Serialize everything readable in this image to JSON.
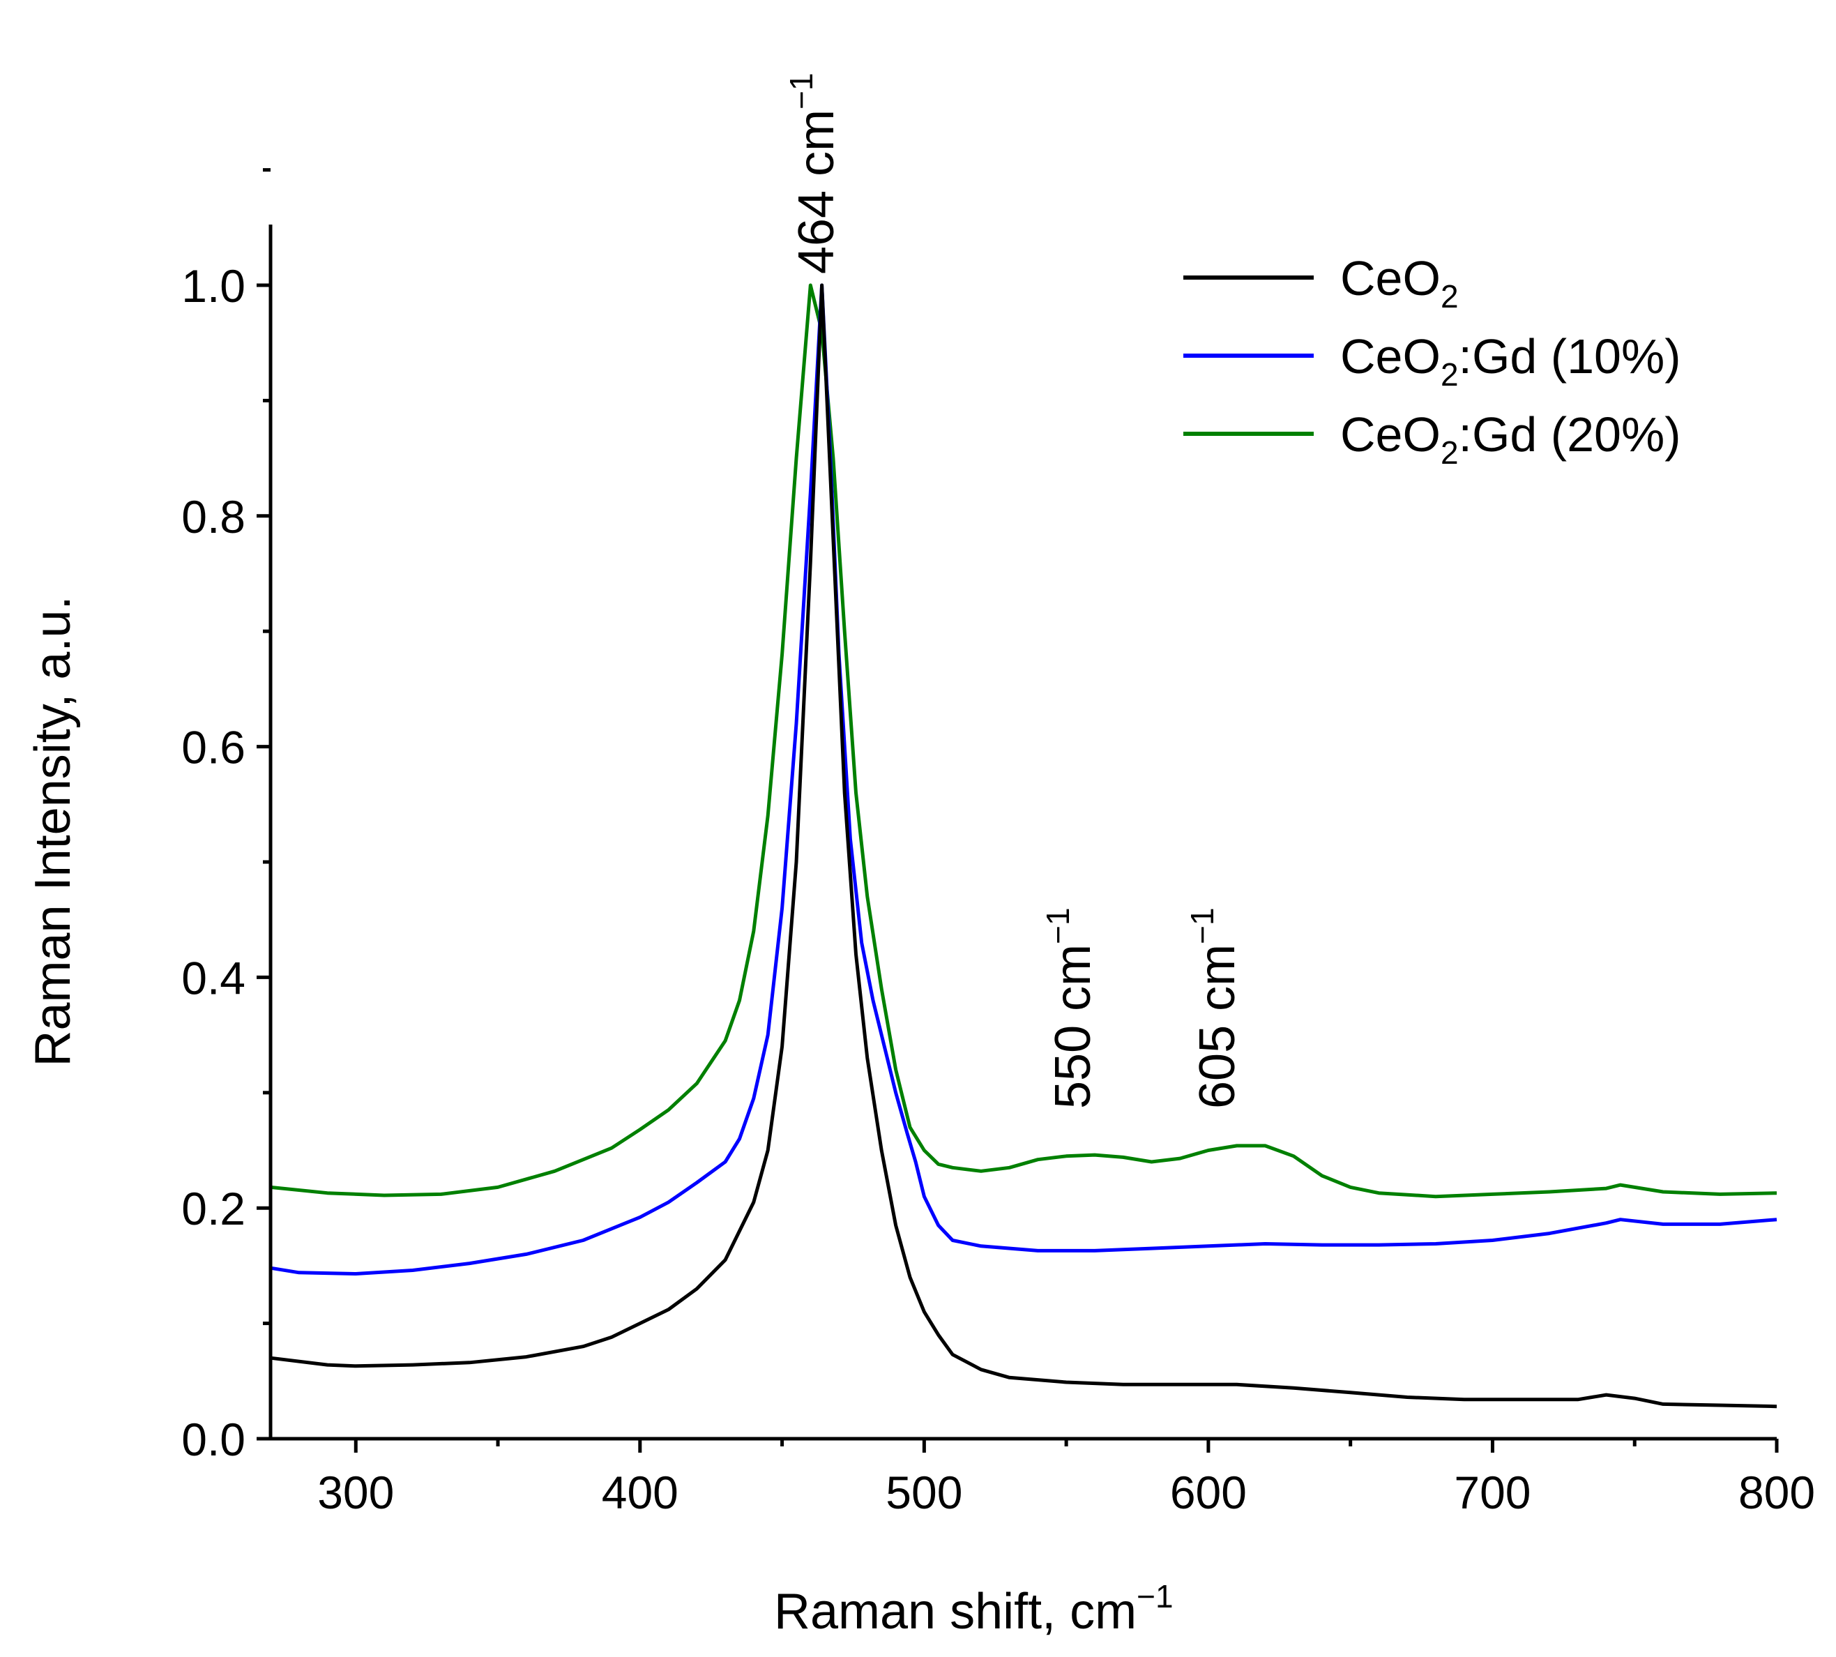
{
  "chart_data": {
    "type": "line",
    "xlabel": "Raman shift, cm",
    "xlabel_sup": "−1",
    "ylabel": "Raman Intensity, a.u.",
    "xlim": [
      270,
      800
    ],
    "ylim": [
      0,
      1.05
    ],
    "grid": false,
    "legend_position": "top-right",
    "x_ticks": [
      {
        "value": 300,
        "label": "300"
      },
      {
        "value": 400,
        "label": "400"
      },
      {
        "value": 500,
        "label": "500"
      },
      {
        "value": 600,
        "label": "600"
      },
      {
        "value": 700,
        "label": "700"
      },
      {
        "value": 800,
        "label": "800"
      }
    ],
    "y_ticks": [
      {
        "value": 0.0,
        "label": "0.0"
      },
      {
        "value": 0.2,
        "label": "0.2"
      },
      {
        "value": 0.4,
        "label": "0.4"
      },
      {
        "value": 0.6,
        "label": "0.6"
      },
      {
        "value": 0.8,
        "label": "0.8"
      },
      {
        "value": 1.0,
        "label": "1.0"
      }
    ],
    "annotations": [
      {
        "x": 464,
        "y": 1.0,
        "label": "464 cm",
        "sup": "−1"
      },
      {
        "x": 550,
        "y": 0.29,
        "label": "550 cm",
        "sup": "−1"
      },
      {
        "x": 605,
        "y": 0.29,
        "label": "605 cm",
        "sup": "−1"
      }
    ],
    "series": [
      {
        "name": "CeO",
        "sub": "2",
        "suffix": "",
        "color": "#000000",
        "points": [
          [
            270,
            0.07
          ],
          [
            290,
            0.064
          ],
          [
            300,
            0.063
          ],
          [
            320,
            0.064
          ],
          [
            340,
            0.066
          ],
          [
            360,
            0.071
          ],
          [
            380,
            0.08
          ],
          [
            390,
            0.088
          ],
          [
            400,
            0.1
          ],
          [
            410,
            0.112
          ],
          [
            420,
            0.13
          ],
          [
            430,
            0.155
          ],
          [
            440,
            0.205
          ],
          [
            445,
            0.25
          ],
          [
            450,
            0.34
          ],
          [
            455,
            0.5
          ],
          [
            460,
            0.76
          ],
          [
            464,
            1.0
          ],
          [
            468,
            0.78
          ],
          [
            472,
            0.56
          ],
          [
            476,
            0.42
          ],
          [
            480,
            0.33
          ],
          [
            485,
            0.25
          ],
          [
            490,
            0.185
          ],
          [
            495,
            0.14
          ],
          [
            500,
            0.11
          ],
          [
            505,
            0.09
          ],
          [
            510,
            0.073
          ],
          [
            520,
            0.06
          ],
          [
            530,
            0.053
          ],
          [
            550,
            0.049
          ],
          [
            570,
            0.047
          ],
          [
            590,
            0.047
          ],
          [
            610,
            0.047
          ],
          [
            630,
            0.044
          ],
          [
            650,
            0.04
          ],
          [
            670,
            0.036
          ],
          [
            690,
            0.034
          ],
          [
            710,
            0.034
          ],
          [
            730,
            0.034
          ],
          [
            740,
            0.038
          ],
          [
            750,
            0.035
          ],
          [
            760,
            0.03
          ],
          [
            780,
            0.029
          ],
          [
            800,
            0.028
          ]
        ]
      },
      {
        "name": "CeO",
        "sub": "2",
        "suffix": ":Gd (10%)",
        "color": "#0000ff",
        "points": [
          [
            270,
            0.148
          ],
          [
            280,
            0.144
          ],
          [
            300,
            0.143
          ],
          [
            320,
            0.146
          ],
          [
            340,
            0.152
          ],
          [
            360,
            0.16
          ],
          [
            380,
            0.172
          ],
          [
            400,
            0.192
          ],
          [
            410,
            0.205
          ],
          [
            420,
            0.222
          ],
          [
            430,
            0.24
          ],
          [
            435,
            0.26
          ],
          [
            440,
            0.295
          ],
          [
            445,
            0.35
          ],
          [
            450,
            0.46
          ],
          [
            455,
            0.62
          ],
          [
            460,
            0.82
          ],
          [
            464,
            1.0
          ],
          [
            467,
            0.85
          ],
          [
            470,
            0.68
          ],
          [
            474,
            0.52
          ],
          [
            478,
            0.43
          ],
          [
            482,
            0.38
          ],
          [
            486,
            0.34
          ],
          [
            490,
            0.3
          ],
          [
            494,
            0.265
          ],
          [
            497,
            0.24
          ],
          [
            500,
            0.21
          ],
          [
            505,
            0.185
          ],
          [
            510,
            0.172
          ],
          [
            520,
            0.167
          ],
          [
            540,
            0.163
          ],
          [
            560,
            0.163
          ],
          [
            580,
            0.165
          ],
          [
            600,
            0.167
          ],
          [
            620,
            0.169
          ],
          [
            640,
            0.168
          ],
          [
            660,
            0.168
          ],
          [
            680,
            0.169
          ],
          [
            700,
            0.172
          ],
          [
            720,
            0.178
          ],
          [
            740,
            0.187
          ],
          [
            745,
            0.19
          ],
          [
            760,
            0.186
          ],
          [
            780,
            0.186
          ],
          [
            800,
            0.19
          ]
        ]
      },
      {
        "name": "CeO",
        "sub": "2",
        "suffix": ":Gd (20%)",
        "color": "#008000",
        "points": [
          [
            270,
            0.218
          ],
          [
            290,
            0.213
          ],
          [
            310,
            0.211
          ],
          [
            330,
            0.212
          ],
          [
            350,
            0.218
          ],
          [
            370,
            0.232
          ],
          [
            390,
            0.252
          ],
          [
            400,
            0.268
          ],
          [
            410,
            0.285
          ],
          [
            420,
            0.308
          ],
          [
            430,
            0.345
          ],
          [
            435,
            0.38
          ],
          [
            440,
            0.44
          ],
          [
            445,
            0.54
          ],
          [
            450,
            0.68
          ],
          [
            455,
            0.85
          ],
          [
            460,
            1.0
          ],
          [
            464,
            0.96
          ],
          [
            468,
            0.85
          ],
          [
            472,
            0.7
          ],
          [
            476,
            0.56
          ],
          [
            480,
            0.47
          ],
          [
            485,
            0.39
          ],
          [
            490,
            0.32
          ],
          [
            495,
            0.27
          ],
          [
            500,
            0.25
          ],
          [
            505,
            0.238
          ],
          [
            510,
            0.235
          ],
          [
            520,
            0.232
          ],
          [
            530,
            0.235
          ],
          [
            540,
            0.242
          ],
          [
            550,
            0.245
          ],
          [
            560,
            0.246
          ],
          [
            570,
            0.244
          ],
          [
            580,
            0.24
          ],
          [
            590,
            0.243
          ],
          [
            600,
            0.25
          ],
          [
            610,
            0.254
          ],
          [
            620,
            0.254
          ],
          [
            630,
            0.245
          ],
          [
            640,
            0.228
          ],
          [
            650,
            0.218
          ],
          [
            660,
            0.213
          ],
          [
            680,
            0.21
          ],
          [
            700,
            0.212
          ],
          [
            720,
            0.214
          ],
          [
            740,
            0.217
          ],
          [
            745,
            0.22
          ],
          [
            760,
            0.214
          ],
          [
            780,
            0.212
          ],
          [
            800,
            0.213
          ]
        ]
      }
    ]
  }
}
